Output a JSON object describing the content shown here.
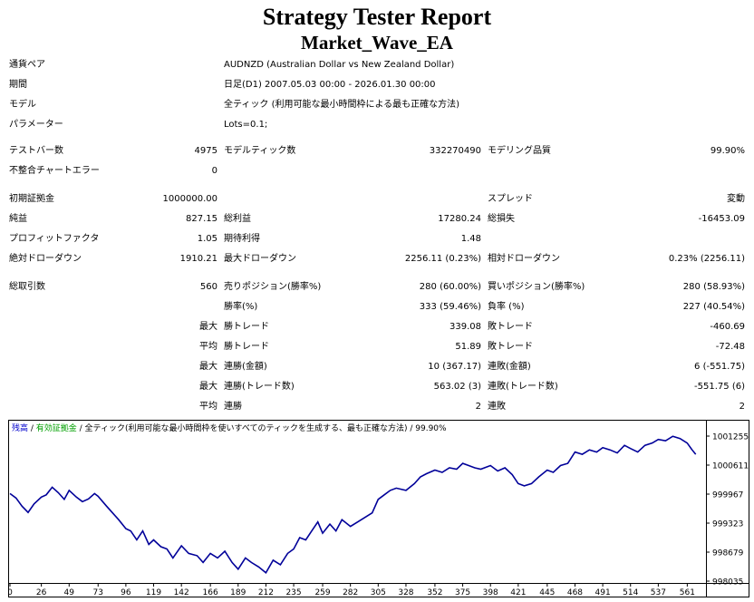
{
  "header": {
    "title": "Strategy Tester Report",
    "subtitle": "Market_Wave_EA"
  },
  "info": {
    "symbol_label": "通貨ペア",
    "symbol_value": "AUDNZD (Australian Dollar vs New Zealand Dollar)",
    "period_label": "期間",
    "period_value": "日足(D1) 2007.05.03 00:00 - 2026.01.30 00:00",
    "model_label": "モデル",
    "model_value": "全ティック (利用可能な最小時間枠による最も正確な方法)",
    "params_label": "パラメーター",
    "params_value": "Lots=0.1;"
  },
  "stats": {
    "bars_label": "テストバー数",
    "bars_value": "4975",
    "ticks_label": "モデルティック数",
    "ticks_value": "332270490",
    "quality_label": "モデリング品質",
    "quality_value": "99.90%",
    "mismatch_label": "不整合チャートエラー",
    "mismatch_value": "0",
    "deposit_label": "初期証拠金",
    "deposit_value": "1000000.00",
    "spread_label": "スプレッド",
    "spread_value": "変動",
    "net_label": "純益",
    "net_value": "827.15",
    "gross_profit_label": "総利益",
    "gross_profit_value": "17280.24",
    "gross_loss_label": "総損失",
    "gross_loss_value": "-16453.09",
    "pf_label": "プロフィットファクタ",
    "pf_value": "1.05",
    "expected_label": "期待利得",
    "expected_value": "1.48",
    "abs_dd_label": "絶対ドローダウン",
    "abs_dd_value": "1910.21",
    "max_dd_label": "最大ドローダウン",
    "max_dd_value": "2256.11 (0.23%)",
    "rel_dd_label": "相対ドローダウン",
    "rel_dd_value": "0.23% (2256.11)",
    "total_trades_label": "総取引数",
    "total_trades_value": "560",
    "short_label": "売りポジション(勝率%)",
    "short_value": "280 (60.00%)",
    "long_label": "買いポジション(勝率%)",
    "long_value": "280 (58.93%)",
    "win_rate_label": "勝率(%)",
    "win_rate_value": "333 (59.46%)",
    "loss_rate_label": "負率 (%)",
    "loss_rate_value": "227 (40.54%)",
    "max_label": "最大",
    "avg_label": "平均",
    "largest_win_label": "勝トレード",
    "largest_win_value": "339.08",
    "largest_loss_label": "敗トレード",
    "largest_loss_value": "-460.69",
    "avg_win_label": "勝トレード",
    "avg_win_value": "51.89",
    "avg_loss_label": "敗トレード",
    "avg_loss_value": "-72.48",
    "max_cons_win_label": "連勝(金額)",
    "max_cons_win_value": "10 (367.17)",
    "max_cons_loss_label": "連敗(金額)",
    "max_cons_loss_value": "6 (-551.75)",
    "max_cons_profit_label": "連勝(トレード数)",
    "max_cons_profit_value": "563.02 (3)",
    "max_cons_lossamt_label": "連敗(トレード数)",
    "max_cons_lossamt_value": "-551.75 (6)",
    "avg_cons_win_label": "連勝",
    "avg_cons_win_value": "2",
    "avg_cons_loss_label": "連敗",
    "avg_cons_loss_value": "2"
  },
  "chart_data": {
    "type": "line",
    "legend": [
      {
        "text": "残高",
        "color": "#0000cc"
      },
      {
        "text": " / ",
        "color": "#000000"
      },
      {
        "text": "有効証拠金",
        "color": "#00a000"
      },
      {
        "text": " / 全ティック(利用可能な最小時間枠を使いすべてのティックを生成する、最も正確な方法) / 99.90%",
        "color": "#000000"
      }
    ],
    "x_ticks": [
      "0",
      "26",
      "49",
      "73",
      "96",
      "119",
      "142",
      "166",
      "189",
      "212",
      "235",
      "259",
      "282",
      "305",
      "328",
      "352",
      "375",
      "398",
      "421",
      "445",
      "468",
      "491",
      "514",
      "537",
      "561"
    ],
    "y_ticks": [
      "1001255",
      "1000611",
      "999967",
      "999323",
      "998679",
      "998035"
    ],
    "ylim": [
      998035,
      1001255
    ],
    "xlim": [
      0,
      575
    ],
    "line_color": "#000099",
    "series": [
      {
        "x": [
          0,
          5,
          10,
          15,
          20,
          26,
          30,
          35,
          40,
          45,
          49,
          55,
          60,
          65,
          70,
          73,
          80,
          85,
          90,
          96,
          100,
          105,
          110,
          115,
          119,
          125,
          130,
          135,
          142,
          148,
          155,
          160,
          166,
          172,
          178,
          184,
          189,
          195,
          200,
          206,
          212,
          218,
          224,
          230,
          235,
          240,
          245,
          250,
          255,
          259,
          265,
          270,
          275,
          282,
          288,
          294,
          300,
          305,
          310,
          315,
          320,
          328,
          335,
          340,
          345,
          352,
          358,
          364,
          370,
          375,
          380,
          385,
          390,
          398,
          404,
          410,
          416,
          421,
          426,
          432,
          438,
          445,
          450,
          456,
          462,
          468,
          474,
          480,
          486,
          491,
          497,
          503,
          509,
          514,
          520,
          526,
          532,
          537,
          543,
          549,
          555,
          561,
          565,
          568
        ],
        "y": [
          999980,
          999880,
          999700,
          999560,
          999750,
          999900,
          999950,
          1000120,
          1000000,
          999850,
          1000050,
          999900,
          999800,
          999860,
          999980,
          999920,
          999700,
          999550,
          999400,
          999200,
          999150,
          998950,
          999150,
          998850,
          998950,
          998800,
          998750,
          998550,
          998820,
          998650,
          998600,
          998450,
          998650,
          998550,
          998700,
          998450,
          998300,
          998550,
          998450,
          998350,
          998220,
          998500,
          998400,
          998650,
          998750,
          999000,
          998950,
          999150,
          999350,
          999100,
          999300,
          999150,
          999400,
          999250,
          999350,
          999450,
          999550,
          999850,
          999950,
          1000050,
          1000100,
          1000050,
          1000200,
          1000350,
          1000420,
          1000500,
          1000450,
          1000550,
          1000520,
          1000650,
          1000600,
          1000550,
          1000520,
          1000600,
          1000480,
          1000550,
          1000400,
          1000200,
          1000150,
          1000200,
          1000350,
          1000500,
          1000450,
          1000600,
          1000650,
          1000900,
          1000850,
          1000950,
          1000900,
          1001000,
          1000950,
          1000880,
          1001050,
          1000980,
          1000900,
          1001050,
          1001100,
          1001180,
          1001150,
          1001250,
          1001200,
          1001100,
          1000950,
          1000850
        ]
      }
    ]
  }
}
